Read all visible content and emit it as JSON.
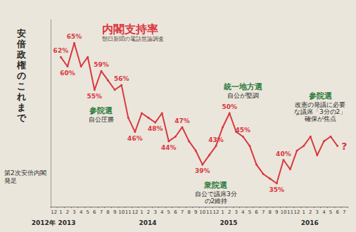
{
  "chart_data": {
    "type": "line",
    "title": "内閣支持率",
    "subtitle": "朝日新聞の電話世論調査",
    "header": "安倍政権のこれまで",
    "start_note": "第2次安倍内閣発足",
    "categories": [
      "12",
      "1",
      "2",
      "3",
      "4",
      "5",
      "6",
      "7",
      "8",
      "9",
      "10",
      "11",
      "12",
      "1",
      "2",
      "3",
      "4",
      "5",
      "6",
      "7",
      "8",
      "9",
      "10",
      "11",
      "12",
      "1",
      "2",
      "3",
      "4",
      "5",
      "6",
      "7",
      "8",
      "9",
      "10",
      "11",
      "12",
      "1",
      "2",
      "3",
      "4",
      "5",
      "6",
      "7"
    ],
    "years": [
      {
        "label": "2012年",
        "at": 0
      },
      {
        "label": "2013",
        "at": 1
      },
      {
        "label": "2014",
        "at": 13
      },
      {
        "label": "2015",
        "at": 25
      },
      {
        "label": "2016",
        "at": 37
      }
    ],
    "values": [
      null,
      62,
      60,
      65,
      60,
      62,
      55,
      59,
      57,
      55,
      56,
      49,
      46,
      50,
      49,
      48,
      50,
      44,
      45,
      47,
      44,
      42,
      39,
      41,
      43,
      47,
      50,
      46,
      45,
      43,
      39,
      37,
      36,
      35,
      40,
      38,
      42,
      43,
      45,
      41,
      44,
      45,
      43,
      null
    ],
    "value_labels": [
      null,
      "62%",
      "60%",
      "65%",
      null,
      null,
      "55%",
      "59%",
      null,
      null,
      "56%",
      null,
      "46%",
      null,
      null,
      "48%",
      null,
      "44%",
      null,
      "47%",
      null,
      null,
      "39%",
      null,
      "43%",
      null,
      "50%",
      null,
      "45%",
      null,
      null,
      null,
      null,
      "35%",
      "40%",
      null,
      null,
      null,
      null,
      null,
      null,
      null,
      null,
      null
    ],
    "color": "#d9383f",
    "ylim": [
      30,
      70
    ],
    "tick_labels": "x",
    "grid": false,
    "events": [
      {
        "label": "参院選",
        "note": "自公圧勝",
        "at": 7
      },
      {
        "label": "衆院選",
        "note": "自公で議席3分の2維持",
        "at": 24
      },
      {
        "label": "統一地方選",
        "note": "自公が堅調",
        "at": 28
      },
      {
        "label": "参院選",
        "note": "改憲の発議に必要な議席「3分の2」確保が焦点",
        "at": 43
      }
    ],
    "end_mark": {
      "label": "?",
      "at": 43
    }
  }
}
